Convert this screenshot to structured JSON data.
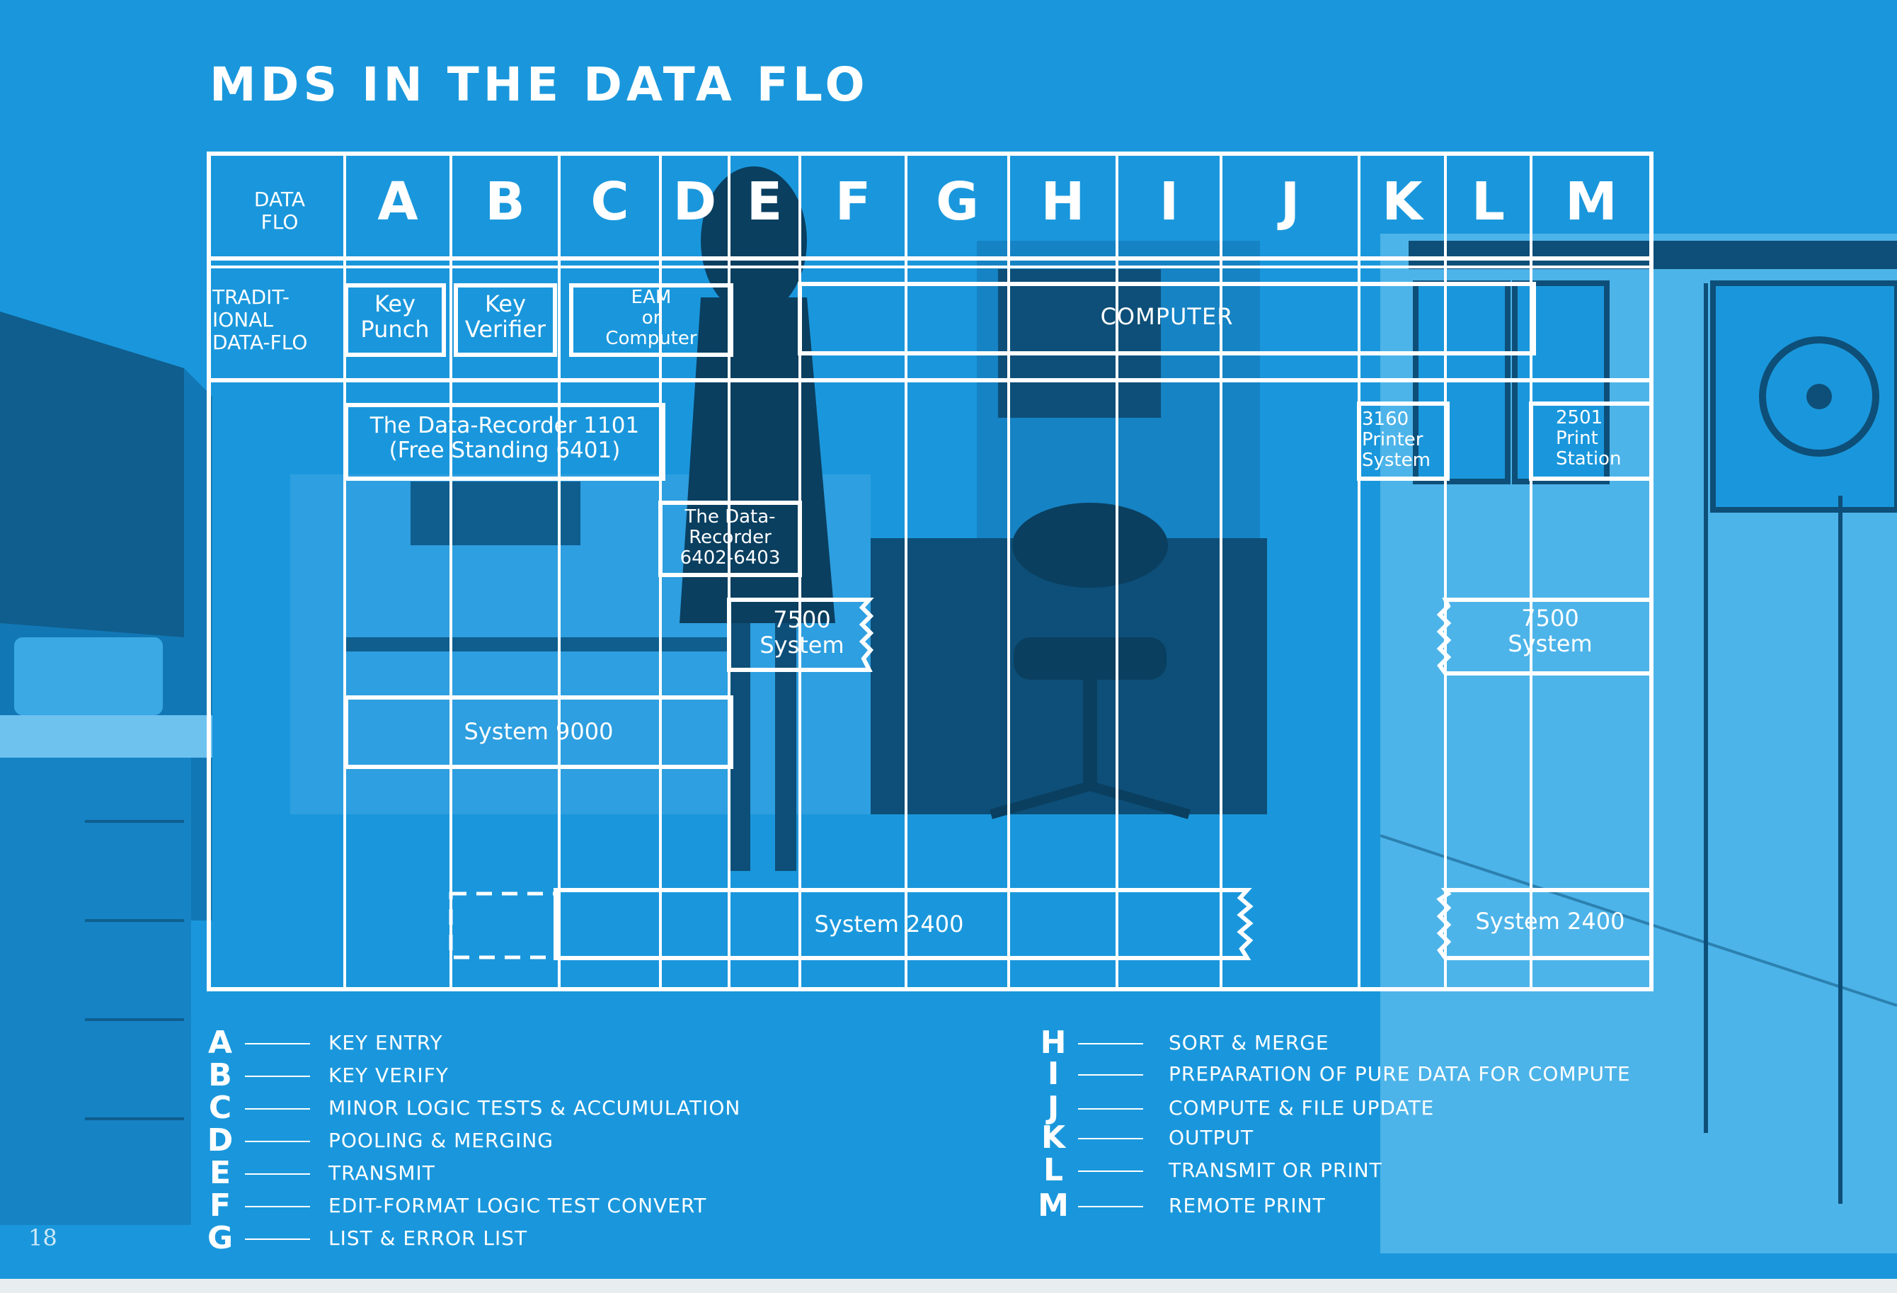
{
  "title": "MDS IN THE DATA FLO",
  "page_number": "18",
  "header": {
    "row_label": "DATA\nFLO",
    "columns": [
      "A",
      "B",
      "C",
      "D",
      "E",
      "F",
      "G",
      "H",
      "I",
      "J",
      "K",
      "L",
      "M"
    ]
  },
  "traditional": {
    "row_label": "TRADIT-\nIONAL\nDATA-FLO",
    "boxes": [
      "Key\nPunch",
      "Key\nVerifier",
      "EAM\nor\nComputer",
      "COMPUTER"
    ]
  },
  "mds_systems": [
    "The Data-Recorder 1101\n(Free Standing 6401)",
    "The Data-\nRecorder\n6402-6403",
    "7500\nSystem",
    "System 9000",
    "System 2400",
    "3160\nPrinter\nSystem",
    "2501\nPrint\nStation",
    "7500\nSystem",
    "System 2400"
  ],
  "legend": [
    {
      "letter": "A",
      "text": "KEY ENTRY"
    },
    {
      "letter": "B",
      "text": "KEY VERIFY"
    },
    {
      "letter": "C",
      "text": "MINOR LOGIC TESTS & ACCUMULATION"
    },
    {
      "letter": "D",
      "text": "POOLING & MERGING"
    },
    {
      "letter": "E",
      "text": "TRANSMIT"
    },
    {
      "letter": "F",
      "text": "EDIT-FORMAT LOGIC TEST CONVERT"
    },
    {
      "letter": "G",
      "text": "LIST & ERROR LIST"
    },
    {
      "letter": "H",
      "text": "SORT & MERGE"
    },
    {
      "letter": "I",
      "text": "PREPARATION OF PURE DATA FOR COMPUTE"
    },
    {
      "letter": "J",
      "text": "COMPUTE & FILE UPDATE"
    },
    {
      "letter": "K",
      "text": "OUTPUT"
    },
    {
      "letter": "L",
      "text": "TRANSMIT OR PRINT"
    },
    {
      "letter": "M",
      "text": "REMOTE PRINT"
    }
  ],
  "colors": {
    "background": "#1a97dc",
    "photo_dark": "#0f5e8e",
    "photo_mid": "#147fbd",
    "photo_light": "#3aa9e4",
    "line": "#ffffff"
  }
}
